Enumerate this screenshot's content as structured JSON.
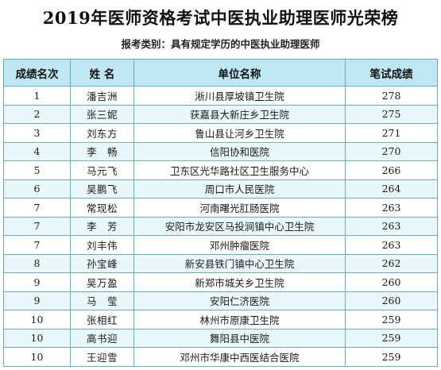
{
  "title": "2019年医师资格考试中医执业助理医师光荣榜",
  "subtitle": "报考类别：具有规定学历的中医执业助理医师",
  "table": {
    "headers": [
      "成绩名次",
      "姓 名",
      "单位名称",
      "笔试成绩"
    ],
    "rows": [
      {
        "rank": "1",
        "name": "潘吉洲",
        "unit": "淅川县厚坡镇卫生院",
        "score": "278"
      },
      {
        "rank": "2",
        "name": "张三妮",
        "unit": "获嘉县大新庄乡卫生院",
        "score": "275"
      },
      {
        "rank": "3",
        "name": "刘东方",
        "unit": "鲁山县让河乡卫生院",
        "score": "271"
      },
      {
        "rank": "4",
        "name": "李　畅",
        "unit": "信阳协和医院",
        "score": "270"
      },
      {
        "rank": "5",
        "name": "马元飞",
        "unit": "卫东区光华路社区卫生服务中心",
        "score": "266"
      },
      {
        "rank": "6",
        "name": "吴鹏飞",
        "unit": "周口市人民医院",
        "score": "264"
      },
      {
        "rank": "7",
        "name": "常现松",
        "unit": "河南曙光肛肠医院",
        "score": "263"
      },
      {
        "rank": "7",
        "name": "李　芳",
        "unit": "安阳市龙安区马投涧镇中心卫生院",
        "score": "263"
      },
      {
        "rank": "7",
        "name": "刘丰伟",
        "unit": "邓州肿瘤医院",
        "score": "263"
      },
      {
        "rank": "8",
        "name": "孙宝峰",
        "unit": "新安县铁门镇中心卫生院",
        "score": "262"
      },
      {
        "rank": "9",
        "name": "吴万盈",
        "unit": "新郑市城关乡卫生院",
        "score": "260"
      },
      {
        "rank": "9",
        "name": "马　莹",
        "unit": "安阳仁济医院",
        "score": "260"
      },
      {
        "rank": "10",
        "name": "张相红",
        "unit": "林州市原康卫生院",
        "score": "259"
      },
      {
        "rank": "10",
        "name": "高书迎",
        "unit": "舞阳县中医院",
        "score": "259"
      },
      {
        "rank": "10",
        "name": "王迎雪",
        "unit": "邓州市华康中西医结合医院",
        "score": "259"
      }
    ]
  },
  "colors": {
    "header_bg": "#bfe6f3",
    "alt_row_bg": "#eaf7fb",
    "border": "#6aaac5"
  }
}
